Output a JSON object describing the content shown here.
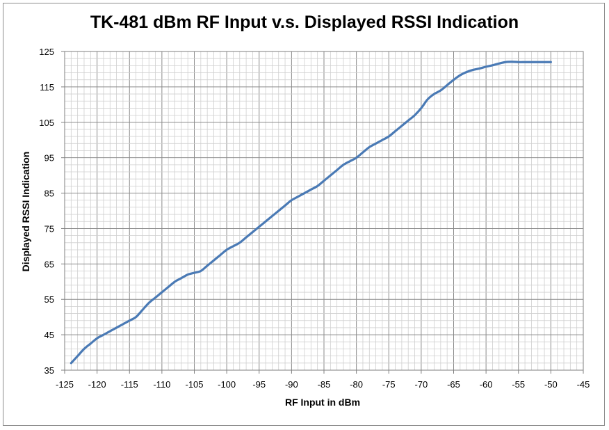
{
  "chart_data": {
    "type": "line",
    "title": "TK-481 dBm RF Input v.s. Displayed RSSI Indication",
    "xlabel": "RF Input in dBm",
    "ylabel": "Displayed RSSI Indication",
    "xlim": [
      -125,
      -45
    ],
    "ylim": [
      35,
      125
    ],
    "xticks": [
      -125,
      -120,
      -115,
      -110,
      -105,
      -100,
      -95,
      -90,
      -85,
      -80,
      -75,
      -70,
      -65,
      -60,
      -55,
      -50,
      -45
    ],
    "yticks": [
      35,
      45,
      55,
      65,
      75,
      85,
      95,
      105,
      115,
      125
    ],
    "grid": true,
    "minor_grid": true,
    "legend": "none",
    "line_color": "#4a7ab5",
    "series": [
      {
        "x": [
          -124,
          -123,
          -122,
          -121,
          -120,
          -119,
          -118,
          -117,
          -116,
          -115,
          -114,
          -113,
          -112,
          -111,
          -110,
          -109,
          -108,
          -107,
          -106,
          -105,
          -104,
          -103,
          -102,
          -101,
          -100,
          -99,
          -98,
          -97,
          -96,
          -95,
          -94,
          -93,
          -92,
          -91,
          -90,
          -89,
          -88,
          -87,
          -86,
          -85,
          -84,
          -83,
          -82,
          -81,
          -80,
          -79,
          -78,
          -77,
          -76,
          -75,
          -74,
          -73,
          -72,
          -71,
          -70,
          -69,
          -68,
          -67,
          -66,
          -65,
          -64,
          -63,
          -62,
          -61,
          -60,
          -59,
          -58,
          -57,
          -56,
          -55,
          -54,
          -53,
          -52,
          -51,
          -50
        ],
        "values": [
          37,
          39,
          41,
          42.5,
          44,
          45,
          46,
          47,
          48,
          49,
          50,
          52,
          54,
          55.5,
          57,
          58.5,
          60,
          61,
          62,
          62.5,
          63,
          64.5,
          66,
          67.5,
          69,
          70,
          71,
          72.5,
          74,
          75.5,
          77,
          78.5,
          80,
          81.5,
          83,
          84,
          85,
          86,
          87,
          88.5,
          90,
          91.5,
          93,
          94,
          95,
          96.5,
          98,
          99,
          100,
          101,
          102.5,
          104,
          105.5,
          107,
          109,
          111.5,
          113,
          114,
          115.5,
          117,
          118.3,
          119.2,
          119.8,
          120.2,
          120.7,
          121.1,
          121.6,
          122,
          122.1,
          122,
          122,
          122,
          122,
          122,
          122
        ]
      }
    ]
  }
}
